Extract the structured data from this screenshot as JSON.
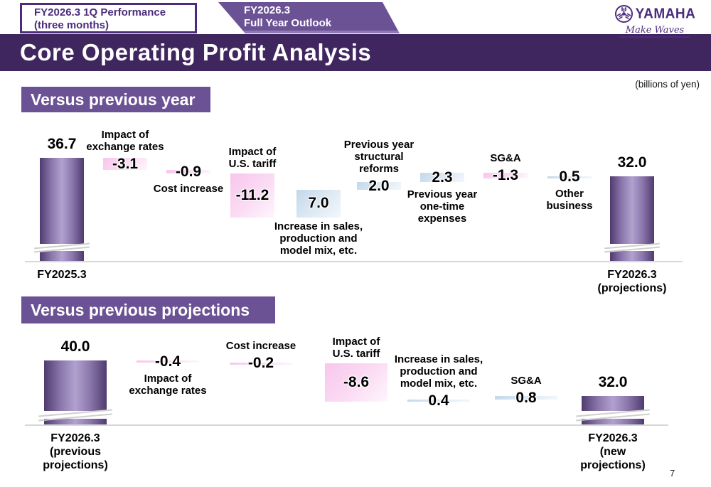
{
  "header": {
    "tab1": {
      "line1": "FY2026.3 1Q Performance",
      "line2": "(three months)"
    },
    "tab2": {
      "line1": "FY2026.3",
      "line2": "Full Year Outlook"
    },
    "title": "Core Operating Profit Analysis",
    "logo": {
      "brand": "YAMAHA",
      "tagline": "Make Waves"
    }
  },
  "unit_note": "(billions of yen)",
  "page_number": "7",
  "colors": {
    "brand_purple": "#4c2b7d",
    "title_bar_purple": "#40265f",
    "banner_purple": "#6b5294",
    "total_bar_purple": "#8a76ab",
    "negative_bar_pink": "#f8c6ec",
    "positive_bar_blue": "#c3d8ea"
  },
  "chart_data": [
    {
      "type": "bar",
      "subtype": "waterfall",
      "section_title": "Versus previous year",
      "unit": "billions of yen",
      "axis_break": true,
      "items": [
        {
          "label": "FY2025.3",
          "value": 36.7,
          "value_label": "36.7",
          "role": "total"
        },
        {
          "label": "Impact of\nexchange rates",
          "value": -3.1,
          "value_label": "-3.1",
          "role": "delta",
          "label_pos": "above"
        },
        {
          "label": "Cost increase",
          "value": -0.9,
          "value_label": "-0.9",
          "role": "delta",
          "label_pos": "below"
        },
        {
          "label": "Impact of\nU.S. tariff",
          "value": -11.2,
          "value_label": "-11.2",
          "role": "delta",
          "label_pos": "above"
        },
        {
          "label": "Increase in sales,\nproduction and\nmodel mix, etc.",
          "value": 7.0,
          "value_label": "7.0",
          "role": "delta",
          "label_pos": "below"
        },
        {
          "label": "Previous year\nstructural\nreforms",
          "value": 2.0,
          "value_label": "2.0",
          "role": "delta",
          "label_pos": "above"
        },
        {
          "label": "Previous year\none-time\nexpenses",
          "value": 2.3,
          "value_label": "2.3",
          "role": "delta",
          "label_pos": "below"
        },
        {
          "label": "SG&A",
          "value": -1.3,
          "value_label": "-1.3",
          "role": "delta",
          "label_pos": "above"
        },
        {
          "label": "Other\nbusiness",
          "value": 0.5,
          "value_label": "0.5",
          "role": "delta",
          "label_pos": "below"
        },
        {
          "label": "FY2026.3\n(projections)",
          "value": 32.0,
          "value_label": "32.0",
          "role": "total"
        }
      ]
    },
    {
      "type": "bar",
      "subtype": "waterfall",
      "section_title": "Versus previous projections",
      "unit": "billions of yen",
      "axis_break": true,
      "items": [
        {
          "label": "FY2026.3\n(previous\nprojections)",
          "value": 40.0,
          "value_label": "40.0",
          "role": "total"
        },
        {
          "label": "Impact of\nexchange rates",
          "value": -0.4,
          "value_label": "-0.4",
          "role": "delta",
          "label_pos": "below"
        },
        {
          "label": "Cost increase",
          "value": -0.2,
          "value_label": "-0.2",
          "role": "delta",
          "label_pos": "above"
        },
        {
          "label": "Impact of\nU.S. tariff",
          "value": -8.6,
          "value_label": "-8.6",
          "role": "delta",
          "label_pos": "above"
        },
        {
          "label": "Increase in sales,\nproduction and\nmodel mix, etc.",
          "value": 0.4,
          "value_label": "0.4",
          "role": "delta",
          "label_pos": "above"
        },
        {
          "label": "SG&A",
          "value": 0.8,
          "value_label": "0.8",
          "role": "delta",
          "label_pos": "above"
        },
        {
          "label": "FY2026.3\n(new\nprojections)",
          "value": 32.0,
          "value_label": "32.0",
          "role": "total"
        }
      ]
    }
  ]
}
